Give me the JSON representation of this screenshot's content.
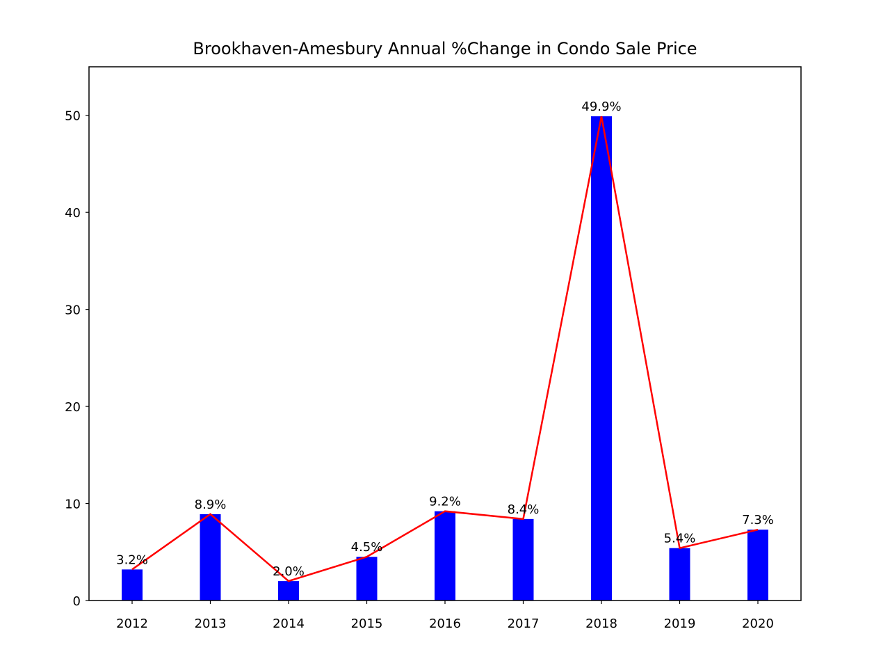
{
  "chart_data": {
    "type": "bar",
    "title": "Brookhaven-Amesbury Annual %Change in Condo Sale Price",
    "xlabel": "",
    "ylabel": "",
    "categories": [
      "2012",
      "2013",
      "2014",
      "2015",
      "2016",
      "2017",
      "2018",
      "2019",
      "2020"
    ],
    "values": [
      3.2,
      8.9,
      2.0,
      4.5,
      9.2,
      8.4,
      49.9,
      5.4,
      7.3
    ],
    "data_labels": [
      "3.2%",
      "8.9%",
      "2.0%",
      "4.5%",
      "9.2%",
      "8.4%",
      "49.9%",
      "5.4%",
      "7.3%"
    ],
    "overlay_line": {
      "type": "line",
      "values": [
        3.2,
        8.9,
        2.0,
        4.5,
        9.2,
        8.4,
        49.9,
        5.4,
        7.3
      ]
    },
    "ylim": [
      0,
      55
    ],
    "yticks": [
      0,
      10,
      20,
      30,
      40,
      50
    ],
    "grid": false,
    "legend": "none",
    "colors": {
      "bars": "#0000ff",
      "line": "#ff0000",
      "axes": "#000000",
      "background": "#ffffff"
    }
  }
}
